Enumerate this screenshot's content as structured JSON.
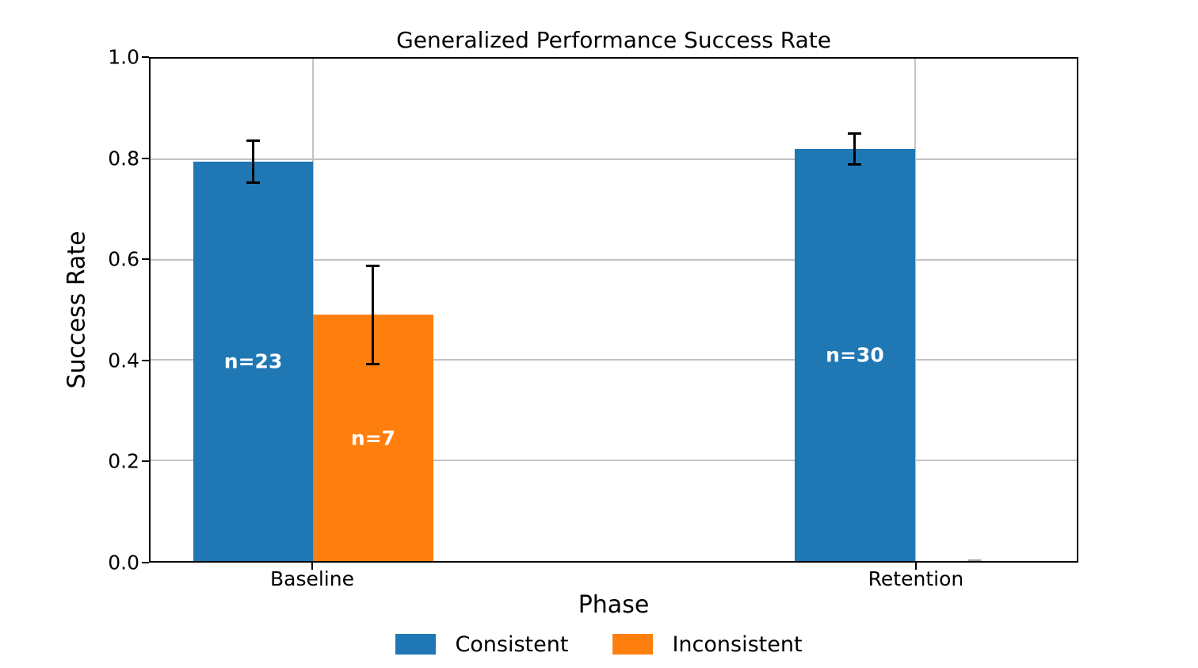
{
  "chart_data": {
    "type": "bar",
    "title": "Generalized Performance Success Rate",
    "xlabel": "Phase",
    "ylabel": "Success Rate",
    "ylim": [
      0.0,
      1.0
    ],
    "ytick_labels": [
      "0.0",
      "0.2",
      "0.4",
      "0.6",
      "0.8",
      "1.0"
    ],
    "categories": [
      "Baseline",
      "Retention"
    ],
    "series": [
      {
        "name": "Consistent",
        "color": "#1f77b4",
        "values": [
          0.795,
          0.82
        ],
        "err_low": [
          0.044,
          0.033
        ],
        "err_high": [
          0.044,
          0.033
        ],
        "bar_labels": [
          "n=23",
          "n=30"
        ]
      },
      {
        "name": "Inconsistent",
        "color": "#ff7f0e",
        "values": [
          0.49,
          0.0
        ],
        "err_low": [
          0.1,
          0.0
        ],
        "err_high": [
          0.1,
          0.0
        ],
        "bar_labels": [
          "n=7",
          ""
        ]
      }
    ],
    "grid": true,
    "legend_position": "lower center, below axes",
    "colors": {
      "consistent": "#1f77b4",
      "inconsistent": "#ff7f0e",
      "grid": "#c2c2c2",
      "bar_label_text": "#ffffff",
      "error_bar": "#000000"
    }
  }
}
